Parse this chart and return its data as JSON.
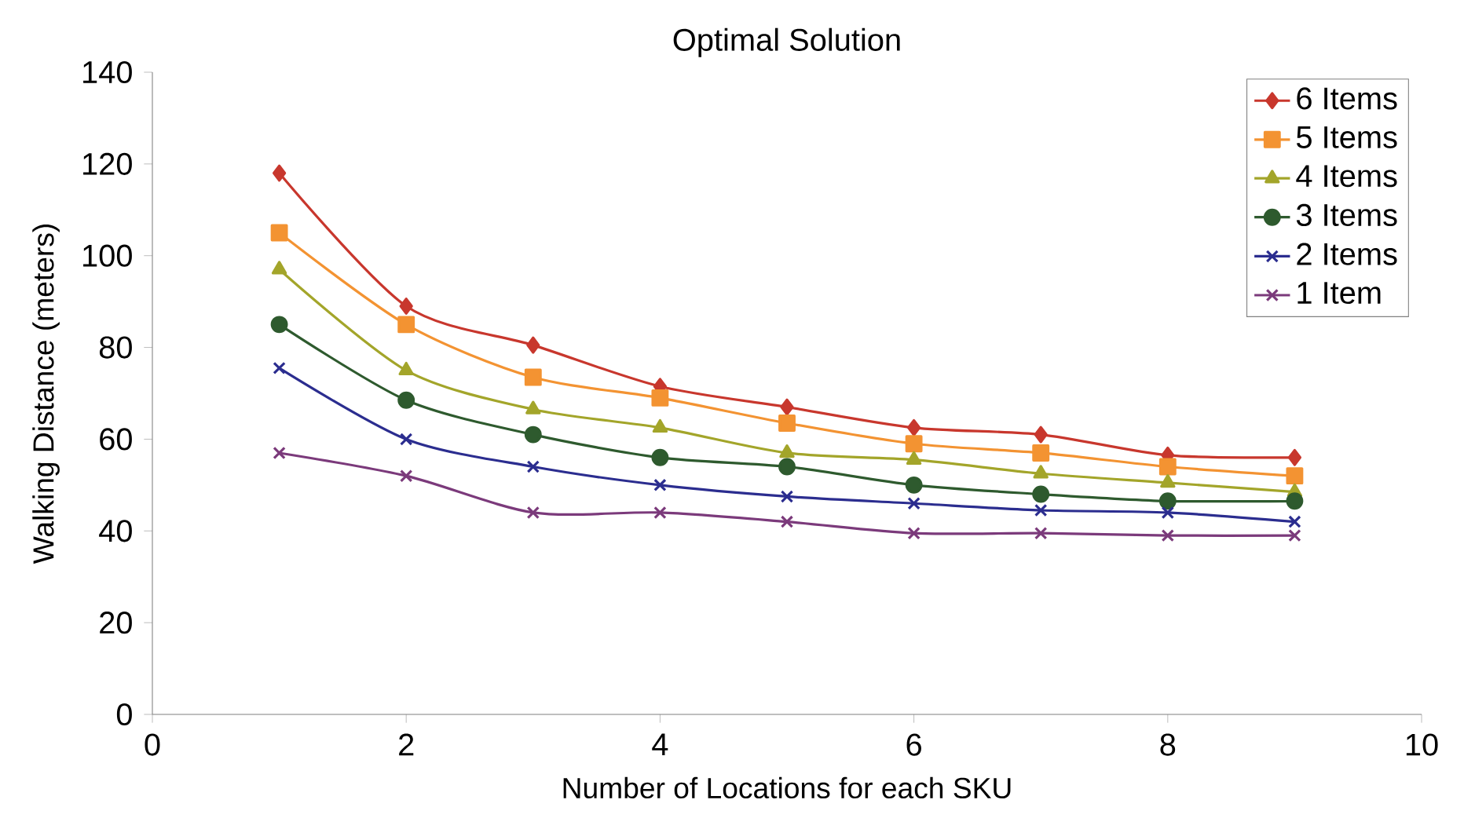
{
  "chart_data": {
    "type": "line",
    "title": "Optimal Solution",
    "xlabel": "Number of Locations for each SKU",
    "ylabel": "Walking Distance (meters)",
    "x": [
      1,
      2,
      3,
      4,
      5,
      6,
      7,
      8,
      9
    ],
    "series": [
      {
        "name": "6 Items",
        "color": "#c8372d",
        "marker": "diamond",
        "values": [
          118,
          89,
          80.5,
          71.5,
          67,
          62.5,
          61,
          56.5,
          56
        ]
      },
      {
        "name": "5 Items",
        "color": "#f39332",
        "marker": "square",
        "values": [
          105,
          85,
          73.5,
          69,
          63.5,
          59,
          57,
          54,
          52
        ]
      },
      {
        "name": "4 Items",
        "color": "#a3a52a",
        "marker": "triangle",
        "values": [
          97,
          75,
          66.5,
          62.5,
          57,
          55.5,
          52.5,
          50.5,
          48.5
        ]
      },
      {
        "name": "3 Items",
        "color": "#2e5a2e",
        "marker": "circle",
        "values": [
          85,
          68.5,
          61,
          56,
          54,
          50,
          48,
          46.5,
          46.5
        ]
      },
      {
        "name": "2 Items",
        "color": "#2b2d8f",
        "marker": "cross",
        "values": [
          75.5,
          60,
          54,
          50,
          47.5,
          46,
          44.5,
          44,
          42
        ]
      },
      {
        "name": "1 Item",
        "color": "#7b3a7b",
        "marker": "cross",
        "values": [
          57,
          52,
          44,
          44,
          42,
          39.5,
          39.5,
          39,
          39
        ]
      }
    ],
    "xlim": [
      0,
      10
    ],
    "xticks": [
      0,
      2,
      4,
      6,
      8,
      10
    ],
    "ylim": [
      0,
      140
    ],
    "yticks": [
      0,
      20,
      40,
      60,
      80,
      100,
      120,
      140
    ],
    "grid": false,
    "legend": "top right",
    "line_style": "solid"
  }
}
